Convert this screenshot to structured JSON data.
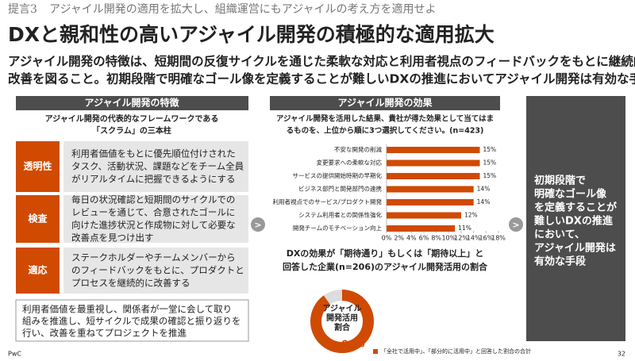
{
  "header": {
    "kicker": "提言3",
    "subtitle": "アジャイル開発の適用を拡大し、組織運営にもアジャイルの考え方を適用せよ",
    "title": "DXと親和性の高いアジャイル開発の積極的な適用拡大",
    "lead": [
      "アジャイル開発の特徴は、短期間の反復サイクルを通じた柔軟な対応と利用者視点のフィードバックをもとに継続的な",
      "改善を図ること。初期段階で明確なゴール像を定義することが難しいDXの推進においてアジャイル開発は有効な手段。"
    ]
  },
  "left": {
    "heading": "アジャイル開発の特徴",
    "intro": [
      "アジャイル開発の代表的なフレームワークである",
      "「スクラム」の三本柱"
    ],
    "pillars": [
      {
        "label": "透明性",
        "text": [
          "利用者価値をもとに優先順位付けされた",
          "タスク、活動状況、課題などをチーム全員",
          "がリアルタイムに把握できるようにする"
        ]
      },
      {
        "label": "検査",
        "text": [
          "毎日の状況確認と短期間のサイクルでの",
          "レビューを通じて、合意されたゴールに",
          "向けた進捗状況と作成物に対して必要な",
          "改善点を見つけ出す"
        ]
      },
      {
        "label": "適応",
        "text": [
          "ステークホルダーやチームメンバーから",
          "のフィードバックをもとに、プロダクトと",
          "プロセスを継続的に改善する"
        ]
      }
    ],
    "summary": [
      "利用者価値を最重視し、関係者が一堂に会して取り",
      "組みを推進し、短サイクルで成果の確認と振り返りを",
      "行い、改善を重ねてプロジェクトを推進"
    ]
  },
  "middle": {
    "heading": "アジャイル開発の効果"
  },
  "arrow": ">",
  "chart_data": [
    {
      "type": "bar",
      "title": [
        "アジャイル開発を活用した結果、貴社が得た効果として当てはま",
        "るものを、上位から順に3つ選択してください。(n=423)"
      ],
      "categories": [
        "不安な開発の削減",
        "変更要求への柔軟な対応",
        "サービスの提供開始時期の早期化",
        "ビジネス部門と開発部門の連携",
        "利用者視点でのサービス/プロダクト開発",
        "システム利用者との関係性強化",
        "開発チームのモチベーション向上"
      ],
      "values": [
        15,
        15,
        15,
        14,
        14,
        12,
        11
      ],
      "value_labels": [
        "15%",
        "15%",
        "15%",
        "14%",
        "14%",
        "12%",
        "11%"
      ],
      "color": "#d04a02",
      "xlim": [
        0,
        18
      ],
      "xticks": [
        {
          "value": 0,
          "label": "0%"
        },
        {
          "value": 2,
          "label": "2%"
        },
        {
          "value": 4,
          "label": "4%"
        },
        {
          "value": 6,
          "label": "6%"
        },
        {
          "value": 8,
          "label": "8%"
        },
        {
          "value": 10,
          "label": "10%"
        },
        {
          "value": 12,
          "label": "12%"
        },
        {
          "value": 14,
          "label": "14%"
        },
        {
          "value": 16,
          "label": "16%"
        },
        {
          "value": 18,
          "label": "18%"
        }
      ]
    },
    {
      "type": "donut",
      "title": [
        "DXの効果が「期待通り」もしくは「期待以上」と",
        "回答した企業(n=206)のアジャイル開発活用の割合"
      ],
      "center_label": [
        "アジャイル",
        "開発活用",
        "割合"
      ],
      "values": [
        90
      ],
      "value_labels": [
        "90%"
      ],
      "color": "#d04a02",
      "legend": "「全社で活用中」、「部分的に活用中」と回答した割合の合計"
    }
  ],
  "right": {
    "text": [
      "初期段階で",
      "明確なゴール像",
      "を定義することが",
      "難しいDXの推進",
      "において、",
      "アジャイル開発は",
      "有効な手段"
    ]
  },
  "footer": {
    "brand": "PwC",
    "page": "32"
  }
}
